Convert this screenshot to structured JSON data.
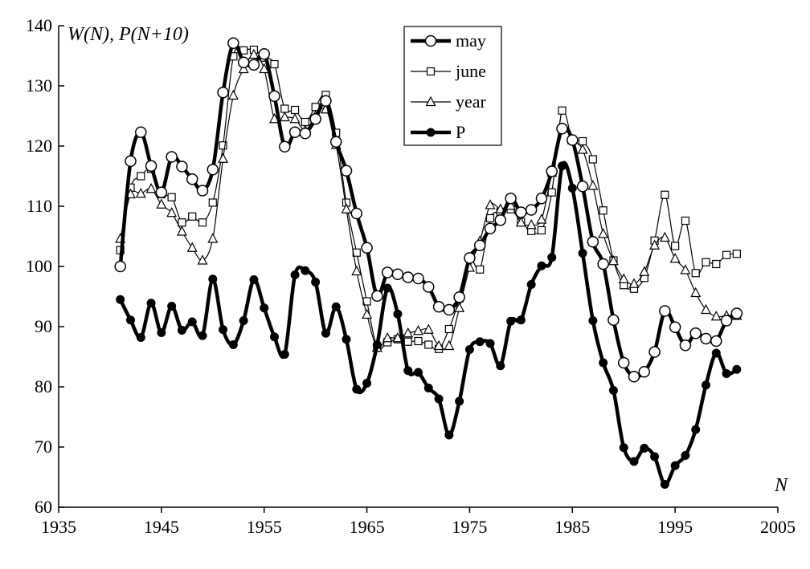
{
  "chart_data": {
    "type": "line",
    "ylabel": "W(N), P(N+10)",
    "xlabel": "N",
    "xlim": [
      1935,
      2005
    ],
    "ylim": [
      60,
      140
    ],
    "x_ticks": [
      1935,
      1945,
      1955,
      1965,
      1975,
      1985,
      1995,
      2005
    ],
    "y_ticks": [
      60,
      70,
      80,
      90,
      100,
      110,
      120,
      130,
      140
    ],
    "grid": false,
    "legend_position": "top-center",
    "series": [
      {
        "name": "may",
        "marker": "circle-open",
        "line": "thick",
        "color": "#000000",
        "x": [
          1941,
          1942,
          1943,
          1944,
          1945,
          1946,
          1947,
          1948,
          1949,
          1950,
          1951,
          1952,
          1953,
          1954,
          1955,
          1956,
          1957,
          1958,
          1959,
          1960,
          1961,
          1962,
          1963,
          1964,
          1965,
          1966,
          1967,
          1968,
          1969,
          1970,
          1971,
          1972,
          1973,
          1974,
          1975,
          1976,
          1977,
          1978,
          1979,
          1980,
          1981,
          1982,
          1983,
          1984,
          1985,
          1986,
          1987,
          1988,
          1989,
          1990,
          1991,
          1992,
          1993,
          1994,
          1995,
          1996,
          1997,
          1998,
          1999,
          2000,
          2001
        ],
        "y": [
          100,
          117.5,
          122.3,
          116.7,
          112.3,
          118.2,
          116.6,
          114.5,
          112.6,
          116.1,
          128.9,
          137.1,
          133.9,
          133.5,
          135.3,
          128.3,
          119.9,
          122.3,
          122.1,
          124.5,
          127.5,
          120.7,
          115.9,
          108.8,
          103.1,
          95.1,
          99.0,
          98.7,
          98.2,
          98.0,
          96.6,
          93.3,
          92.8,
          94.9,
          101.4,
          103.5,
          106.3,
          107.7,
          111.3,
          109.0,
          109.4,
          111.3,
          115.8,
          122.9,
          121.0,
          113.3,
          104.1,
          100.4,
          91.1,
          84.0,
          81.7,
          82.5,
          85.8,
          92.6,
          89.9,
          86.9,
          88.9,
          88.0,
          87.6,
          91.0,
          92.2
        ]
      },
      {
        "name": "june",
        "marker": "square-open",
        "line": "thin",
        "color": "#000000",
        "x": [
          1941,
          1942,
          1943,
          1944,
          1945,
          1946,
          1947,
          1948,
          1949,
          1950,
          1951,
          1952,
          1953,
          1954,
          1955,
          1956,
          1957,
          1958,
          1959,
          1960,
          1961,
          1962,
          1963,
          1964,
          1965,
          1966,
          1967,
          1968,
          1969,
          1970,
          1971,
          1972,
          1973,
          1974,
          1975,
          1976,
          1977,
          1978,
          1979,
          1980,
          1981,
          1982,
          1983,
          1984,
          1985,
          1986,
          1987,
          1988,
          1989,
          1990,
          1991,
          1992,
          1993,
          1994,
          1995,
          1996,
          1997,
          1998,
          1999,
          2000,
          2001
        ],
        "y": [
          102.7,
          113.1,
          115.0,
          116.2,
          112.0,
          111.5,
          107.3,
          108.3,
          107.3,
          110.6,
          120.1,
          134.9,
          135.9,
          136.0,
          134.7,
          133.6,
          126.2,
          126.0,
          124.0,
          126.5,
          128.5,
          122.2,
          110.6,
          102.3,
          94.2,
          86.5,
          87.4,
          87.9,
          87.5,
          87.6,
          87.0,
          86.3,
          89.6,
          94.7,
          101.3,
          99.5,
          108.0,
          109.0,
          109.5,
          107.4,
          105.9,
          106.0,
          112.3,
          125.9,
          121.0,
          120.8,
          117.8,
          109.3,
          101.0,
          96.9,
          96.3,
          98.1,
          104.3,
          111.9,
          103.4,
          107.6,
          98.9,
          100.7,
          100.4,
          101.9,
          102.1
        ]
      },
      {
        "name": "year",
        "marker": "triangle-open",
        "line": "thin",
        "color": "#000000",
        "x": [
          1941,
          1942,
          1943,
          1944,
          1945,
          1946,
          1947,
          1948,
          1949,
          1950,
          1951,
          1952,
          1953,
          1954,
          1955,
          1956,
          1957,
          1958,
          1959,
          1960,
          1961,
          1962,
          1963,
          1964,
          1965,
          1966,
          1967,
          1968,
          1969,
          1970,
          1971,
          1972,
          1973,
          1974,
          1975,
          1976,
          1977,
          1978,
          1979,
          1980,
          1981,
          1982,
          1983,
          1984,
          1985,
          1986,
          1987,
          1988,
          1989,
          1990,
          1991,
          1992,
          1993,
          1994,
          1995,
          1996,
          1997,
          1998,
          1999,
          2000,
          2001
        ],
        "y": [
          104.6,
          112.0,
          112.1,
          112.9,
          110.3,
          108.9,
          105.8,
          103.1,
          101.0,
          104.6,
          117.9,
          128.4,
          132.8,
          135.2,
          132.8,
          124.5,
          124.8,
          124.5,
          122.6,
          125.0,
          126.1,
          120.2,
          109.5,
          99.2,
          92.0,
          86.5,
          88.1,
          88.1,
          88.9,
          89.3,
          89.5,
          86.8,
          86.8,
          93.1,
          99.8,
          104.2,
          110.2,
          109.5,
          110.1,
          107.3,
          106.9,
          107.8,
          115.6,
          123.0,
          121.0,
          119.4,
          113.4,
          105.4,
          100.9,
          97.9,
          97.1,
          99.1,
          103.5,
          104.8,
          101.3,
          99.4,
          95.6,
          92.8,
          91.7,
          91.8,
          91.8
        ]
      },
      {
        "name": "P",
        "marker": "circle-filled",
        "line": "thick",
        "color": "#000000",
        "x": [
          1941,
          1942,
          1943,
          1944,
          1945,
          1946,
          1947,
          1948,
          1949,
          1950,
          1951,
          1952,
          1953,
          1954,
          1955,
          1956,
          1957,
          1958,
          1959,
          1960,
          1961,
          1962,
          1963,
          1964,
          1965,
          1966,
          1967,
          1968,
          1969,
          1970,
          1971,
          1972,
          1973,
          1974,
          1975,
          1976,
          1977,
          1978,
          1979,
          1980,
          1981,
          1982,
          1983,
          1984,
          1985,
          1986,
          1987,
          1988,
          1989,
          1990,
          1991,
          1992,
          1993,
          1994,
          1995,
          1996,
          1997,
          1998,
          1999,
          2000,
          2001
        ],
        "y": [
          94.5,
          91.1,
          88.2,
          93.9,
          89.0,
          93.4,
          89.4,
          90.8,
          88.5,
          97.9,
          89.5,
          87.0,
          91.0,
          97.8,
          93.1,
          88.3,
          85.4,
          98.6,
          99.3,
          97.4,
          88.9,
          93.3,
          87.9,
          79.6,
          80.6,
          87.0,
          96.4,
          92.1,
          82.7,
          82.4,
          79.8,
          78.0,
          72.0,
          77.6,
          86.2,
          87.5,
          87.2,
          83.5,
          90.9,
          91.1,
          97.0,
          100.1,
          101.5,
          116.7,
          113.0,
          102.2,
          91.0,
          84.0,
          79.4,
          69.9,
          67.6,
          69.8,
          68.4,
          63.8,
          66.9,
          68.6,
          72.9,
          80.3,
          85.6,
          82.2,
          82.9
        ]
      }
    ]
  }
}
